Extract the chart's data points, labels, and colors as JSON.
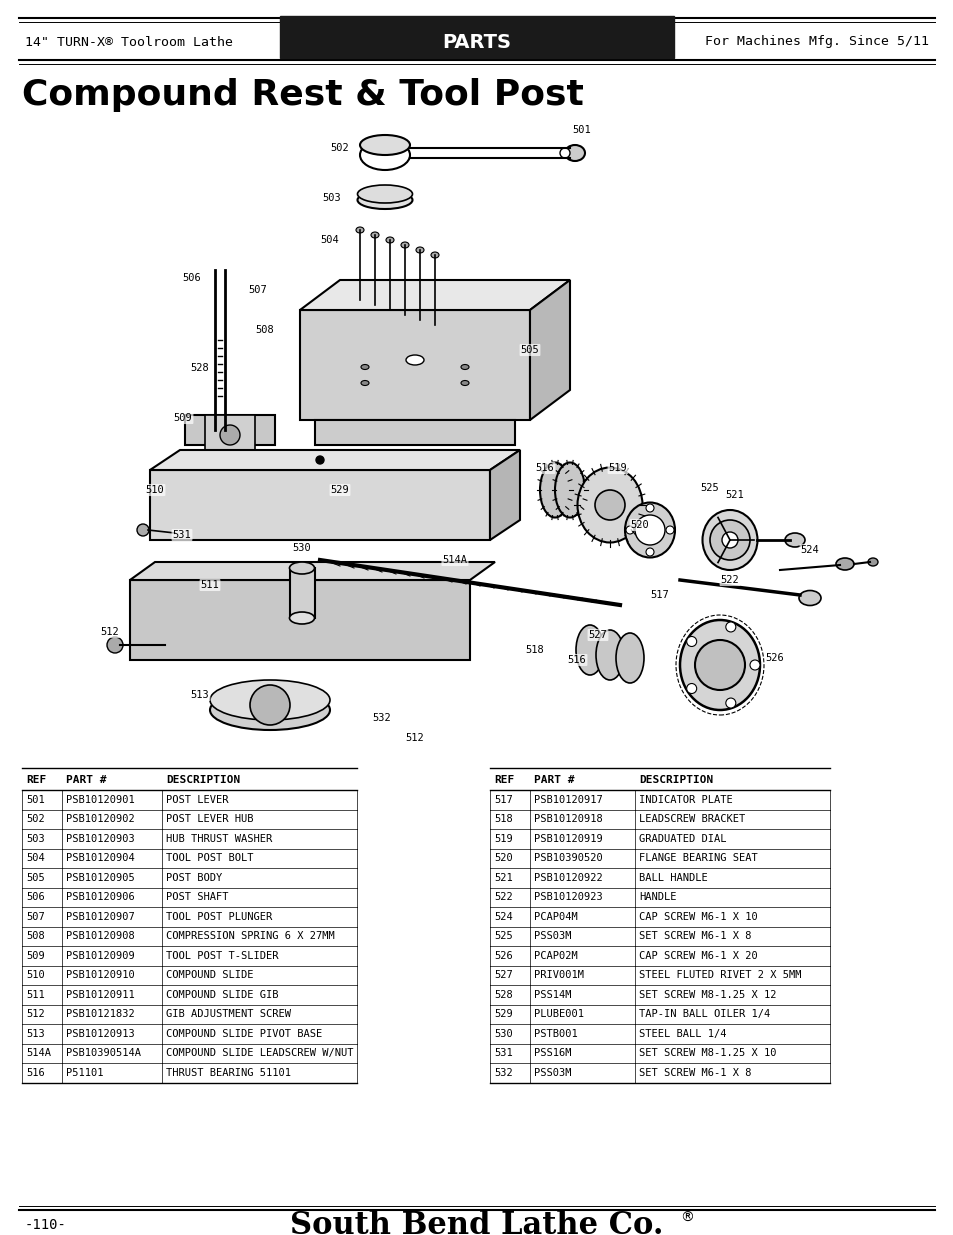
{
  "page_title": "Compound Rest & Tool Post",
  "header_left": "14\" TURN-X® Toolroom Lathe",
  "header_center": "PARTS",
  "header_right": "For Machines Mfg. Since 5/11",
  "footer_left": "-110-",
  "footer_center": "South Bend Lathe Co.",
  "footer_reg": "®",
  "bg_color": "#ffffff",
  "header_bg": "#1a1a1a",
  "header_text_color": "#ffffff",
  "table_left": [
    [
      "501",
      "PSB10120901",
      "POST LEVER"
    ],
    [
      "502",
      "PSB10120902",
      "POST LEVER HUB"
    ],
    [
      "503",
      "PSB10120903",
      "HUB THRUST WASHER"
    ],
    [
      "504",
      "PSB10120904",
      "TOOL POST BOLT"
    ],
    [
      "505",
      "PSB10120905",
      "POST BODY"
    ],
    [
      "506",
      "PSB10120906",
      "POST SHAFT"
    ],
    [
      "507",
      "PSB10120907",
      "TOOL POST PLUNGER"
    ],
    [
      "508",
      "PSB10120908",
      "COMPRESSION SPRING 6 X 27MM"
    ],
    [
      "509",
      "PSB10120909",
      "TOOL POST T-SLIDER"
    ],
    [
      "510",
      "PSB10120910",
      "COMPOUND SLIDE"
    ],
    [
      "511",
      "PSB10120911",
      "COMPOUND SLIDE GIB"
    ],
    [
      "512",
      "PSB10121832",
      "GIB ADJUSTMENT SCREW"
    ],
    [
      "513",
      "PSB10120913",
      "COMPOUND SLIDE PIVOT BASE"
    ],
    [
      "514A",
      "PSB10390514A",
      "COMPOUND SLIDE LEADSCREW W/NUT"
    ],
    [
      "516",
      "P51101",
      "THRUST BEARING 51101"
    ]
  ],
  "table_right": [
    [
      "517",
      "PSB10120917",
      "INDICATOR PLATE"
    ],
    [
      "518",
      "PSB10120918",
      "LEADSCREW BRACKET"
    ],
    [
      "519",
      "PSB10120919",
      "GRADUATED DIAL"
    ],
    [
      "520",
      "PSB10390520",
      "FLANGE BEARING SEAT"
    ],
    [
      "521",
      "PSB10120922",
      "BALL HANDLE"
    ],
    [
      "522",
      "PSB10120923",
      "HANDLE"
    ],
    [
      "524",
      "PCAP04M",
      "CAP SCREW M6-1 X 10"
    ],
    [
      "525",
      "PSS03M",
      "SET SCREW M6-1 X 8"
    ],
    [
      "526",
      "PCAP02M",
      "CAP SCREW M6-1 X 20"
    ],
    [
      "527",
      "PRIV001M",
      "STEEL FLUTED RIVET 2 X 5MM"
    ],
    [
      "528",
      "PSS14M",
      "SET SCREW M8-1.25 X 12"
    ],
    [
      "529",
      "PLUBE001",
      "TAP-IN BALL OILER 1/4"
    ],
    [
      "530",
      "PSTB001",
      "STEEL BALL 1/4"
    ],
    [
      "531",
      "PSS16M",
      "SET SCREW M8-1.25 X 10"
    ],
    [
      "532",
      "PSS03M",
      "SET SCREW M6-1 X 8"
    ]
  ],
  "col_headers": [
    "REF",
    "PART #",
    "DESCRIPTION"
  ],
  "diagram_image_placeholder": true
}
